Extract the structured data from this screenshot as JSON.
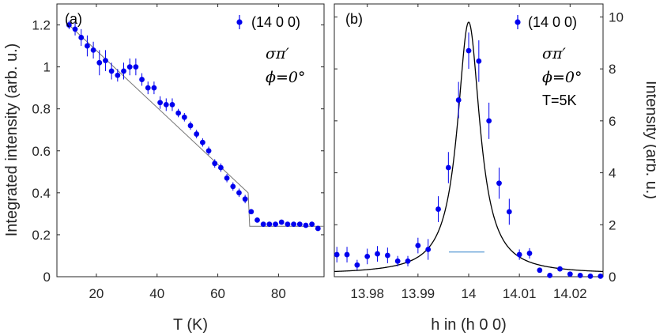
{
  "chart_data": [
    {
      "panel": "(a)",
      "type": "scatter",
      "xlabel": "T (K)",
      "ylabel": "Integrated intensity (arb. u.)",
      "xlim": [
        7,
        95
      ],
      "ylim": [
        0,
        1.3
      ],
      "xticks": [
        20,
        40,
        60,
        80
      ],
      "xtick_labels": [
        "20",
        "40",
        "60",
        "80"
      ],
      "yticks": [
        0,
        0.2,
        0.4,
        0.6,
        0.8,
        1,
        1.2
      ],
      "ytick_labels": [
        "0",
        "0.2",
        "0.4",
        "0.6",
        "0.8",
        "1",
        "1.2"
      ],
      "legend": "(14 0 0)",
      "annotations": [
        "σπ′",
        "ϕ=0°"
      ],
      "series": [
        {
          "name": "(14 0 0)",
          "color": "#0000ee",
          "x": [
            11,
            13,
            15,
            17,
            19,
            21,
            23,
            25,
            27,
            29,
            31,
            33,
            35,
            37,
            39,
            41,
            43,
            45,
            47,
            49,
            51,
            53,
            55,
            57,
            59,
            61,
            63,
            65,
            67,
            69,
            71,
            73,
            75,
            77,
            79,
            81,
            83,
            85,
            87,
            89,
            91,
            93
          ],
          "y": [
            1.2,
            1.18,
            1.14,
            1.1,
            1.08,
            1.02,
            1.03,
            0.98,
            0.96,
            0.98,
            1.0,
            1.0,
            0.94,
            0.9,
            0.9,
            0.83,
            0.82,
            0.82,
            0.78,
            0.76,
            0.72,
            0.68,
            0.64,
            0.6,
            0.54,
            0.52,
            0.47,
            0.43,
            0.4,
            0.37,
            0.31,
            0.27,
            0.25,
            0.25,
            0.25,
            0.26,
            0.25,
            0.25,
            0.25,
            0.245,
            0.25,
            0.23
          ],
          "err": [
            0.02,
            0.03,
            0.04,
            0.05,
            0.04,
            0.06,
            0.05,
            0.04,
            0.03,
            0.04,
            0.04,
            0.04,
            0.03,
            0.03,
            0.03,
            0.03,
            0.03,
            0.03,
            0.02,
            0.02,
            0.02,
            0.02,
            0.02,
            0.02,
            0.02,
            0.02,
            0.02,
            0.02,
            0.02,
            0.02,
            0.01,
            0.01,
            0.01,
            0.01,
            0.01,
            0.01,
            0.01,
            0.01,
            0.01,
            0.01,
            0.01,
            0.01
          ]
        },
        {
          "name": "fit",
          "color": "#777777",
          "x": [
            11,
            70,
            70.5,
            95
          ],
          "y": [
            1.2,
            0.4,
            0.24,
            0.24
          ]
        }
      ]
    },
    {
      "panel": "(b)",
      "type": "scatter",
      "xlabel": "h in (h 0 0)",
      "ylabel": "Intensity (arb. u.)",
      "xlim": [
        13.9735,
        14.0265
      ],
      "ylim": [
        0,
        10.5
      ],
      "xticks": [
        13.98,
        13.99,
        14,
        14.01,
        14.02
      ],
      "xtick_labels": [
        "13.98",
        "13.99",
        "14",
        "14.01",
        "14.02"
      ],
      "yticks": [
        0,
        2,
        4,
        6,
        8,
        10
      ],
      "ytick_labels": [
        "0",
        "2",
        "4",
        "6",
        "8",
        "10"
      ],
      "legend": "(14 0 0)",
      "annotations": [
        "σπ′",
        "ϕ=0°",
        "T=5K"
      ],
      "resolution_bar": {
        "x": [
          13.9961,
          14.0031
        ],
        "y": 0.95,
        "color": "#5b9bd5"
      },
      "series": [
        {
          "name": "(14 0 0)",
          "color": "#0000ee",
          "x": [
            13.974,
            13.976,
            13.978,
            13.98,
            13.982,
            13.984,
            13.986,
            13.988,
            13.99,
            13.992,
            13.994,
            13.996,
            13.998,
            14.0,
            14.002,
            14.004,
            14.006,
            14.008,
            14.01,
            14.012,
            14.014,
            14.016,
            14.018,
            14.02,
            14.022,
            14.024,
            14.026
          ],
          "y": [
            0.85,
            0.85,
            0.45,
            0.78,
            0.88,
            0.82,
            0.6,
            0.6,
            1.2,
            1.05,
            2.6,
            4.2,
            6.8,
            8.7,
            8.3,
            6.0,
            3.6,
            2.5,
            0.85,
            0.9,
            0.25,
            0.05,
            0.3,
            0.1,
            0.05,
            0.02,
            0.02
          ],
          "err": [
            0.3,
            0.3,
            0.2,
            0.3,
            0.3,
            0.3,
            0.2,
            0.2,
            0.3,
            0.4,
            0.5,
            0.6,
            0.7,
            0.7,
            0.8,
            0.7,
            0.6,
            0.5,
            0.2,
            0.2,
            0.1,
            0.05,
            0.1,
            0.05,
            0.05,
            0.05,
            0.05
          ]
        },
        {
          "name": "Lorentzian fit",
          "color": "#000000",
          "function": "lorentzian",
          "center": 14.0,
          "hwhm": 0.0027,
          "amplitude": 9.7,
          "background": 0.1
        }
      ]
    }
  ]
}
